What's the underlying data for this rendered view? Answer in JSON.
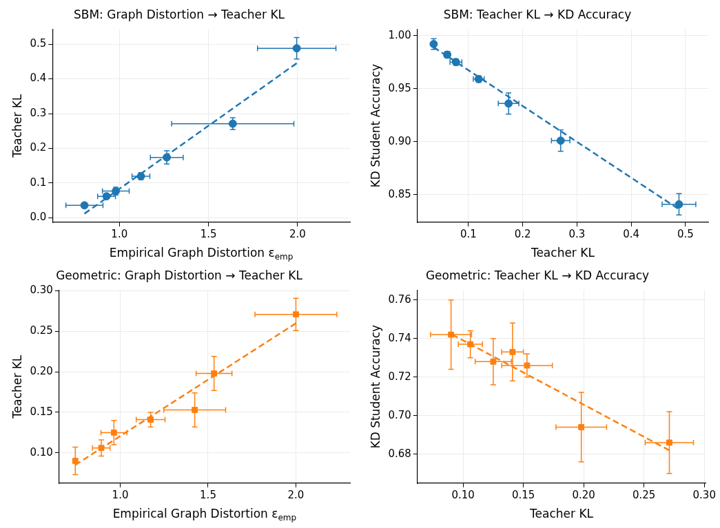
{
  "chart_data": [
    {
      "type": "scatter",
      "title": "SBM: Graph Distortion → Teacher KL",
      "xlabel": "Empirical Graph Distortion ε$_{emp}$",
      "ylabel": "Teacher KL",
      "marker": "circle",
      "grid": true,
      "legend": false,
      "xlim": [
        0.625,
        2.294
      ],
      "xticks": [
        {
          "value": 1,
          "label": "1.0"
        },
        1.5,
        {
          "value": 2,
          "label": "2.0"
        }
      ],
      "ylim": [
        -0.013,
        0.543
      ],
      "yticks": [
        {
          "value": 0,
          "label": "0.0"
        },
        0.1,
        0.2,
        0.3,
        0.4,
        0.5
      ],
      "series": [
        {
          "type": "scatter",
          "color": "#1f77b4",
          "x": [
            0.804,
            0.928,
            0.98,
            1.121,
            1.266,
            1.636,
            1.995
          ],
          "values": [
            0.036,
            0.062,
            0.077,
            0.12,
            0.174,
            0.271,
            0.488
          ],
          "errors": [
            null,
            null,
            0.011,
            0.01,
            0.019,
            0.017,
            0.031
          ],
          "xerrors": [
            0.104,
            0.05,
            0.075,
            0.05,
            0.092,
            0.343,
            0.22
          ]
        },
        {
          "type": "line",
          "color": "#1f77b4",
          "marker": "none",
          "line_style": "dashed",
          "x": [
            0.804,
            1.995
          ],
          "values": [
            0.012,
            0.445
          ]
        }
      ]
    },
    {
      "type": "scatter",
      "title": "SBM: Teacher KL → KD Accuracy",
      "xlabel": "Teacher KL",
      "ylabel": "KD Student Accuracy",
      "marker": "circle",
      "grid": true,
      "legend": false,
      "xlim": [
        0.006,
        0.542
      ],
      "xticks": [
        0.1,
        0.2,
        0.3,
        0.4,
        0.5
      ],
      "ylim": [
        0.824,
        1.006
      ],
      "yticks": [
        0.85,
        {
          "value": 0.9,
          "label": "0.90"
        },
        0.95,
        {
          "value": 1,
          "label": "1.00"
        }
      ],
      "series": [
        {
          "type": "scatter",
          "color": "#1f77b4",
          "x": [
            0.036,
            0.061,
            0.077,
            0.119,
            0.174,
            0.27,
            0.488
          ],
          "values": [
            0.992,
            0.982,
            0.975,
            0.959,
            0.936,
            0.901,
            0.841
          ],
          "errors": [
            0.005,
            0.003,
            0.003,
            0.003,
            0.01,
            0.01,
            0.01
          ],
          "xerrors": [
            0.002,
            0.005,
            0.011,
            0.01,
            0.019,
            0.017,
            0.031
          ]
        },
        {
          "type": "line",
          "color": "#1f77b4",
          "marker": "none",
          "line_style": "dashed",
          "x": [
            0.036,
            0.486
          ],
          "values": [
            0.989,
            0.837
          ]
        }
      ]
    },
    {
      "type": "scatter",
      "title": "Geometric: Graph Distortion → Teacher KL",
      "xlabel": "Empirical Graph Distortion ε$_{emp}$",
      "ylabel": "Teacher KL",
      "marker": "square",
      "grid": true,
      "legend": false,
      "xlim": [
        0.652,
        2.308
      ],
      "xticks": [
        {
          "value": 1,
          "label": "1.0"
        },
        1.5,
        {
          "value": 2,
          "label": "2.0"
        }
      ],
      "ylim": [
        0.0624,
        0.301
      ],
      "yticks": [
        {
          "value": 0.1,
          "label": "0.10"
        },
        0.15,
        {
          "value": 0.2,
          "label": "0.20"
        },
        0.25,
        {
          "value": 0.3,
          "label": "0.30"
        }
      ],
      "series": [
        {
          "type": "scatter",
          "color": "#ff7f0e",
          "x": [
            0.744,
            0.892,
            0.964,
            1.173,
            1.424,
            1.534,
            2.0
          ],
          "values": [
            0.09,
            0.106,
            0.125,
            0.141,
            0.153,
            0.198,
            0.271
          ],
          "errors": [
            0.017,
            0.01,
            0.015,
            0.009,
            0.021,
            0.021,
            0.02
          ],
          "xerrors": [
            0.005,
            0.05,
            0.074,
            0.082,
            0.176,
            0.102,
            0.233
          ]
        },
        {
          "type": "line",
          "color": "#ff7f0e",
          "marker": "none",
          "line_style": "dashed",
          "x": [
            0.744,
            2.0
          ],
          "values": [
            0.085,
            0.26
          ]
        }
      ]
    },
    {
      "type": "scatter",
      "title": "Geometric: Teacher KL → KD Accuracy",
      "xlabel": "Teacher KL",
      "ylabel": "KD Student Accuracy",
      "marker": "square",
      "grid": true,
      "legend": false,
      "xlim": [
        0.0621,
        0.3012
      ],
      "xticks": [
        {
          "value": 0.1,
          "label": "0.10"
        },
        0.15,
        {
          "value": 0.2,
          "label": "0.20"
        },
        0.25,
        {
          "value": 0.3,
          "label": "0.30"
        }
      ],
      "ylim": [
        0.6649,
        0.7651
      ],
      "yticks": [
        0.68,
        {
          "value": 0.7,
          "label": "0.70"
        },
        0.72,
        0.74,
        0.76
      ],
      "series": [
        {
          "type": "scatter",
          "color": "#ff7f0e",
          "x": [
            0.09,
            0.106,
            0.125,
            0.141,
            0.153,
            0.198,
            0.271
          ],
          "values": [
            0.742,
            0.737,
            0.728,
            0.733,
            0.726,
            0.694,
            0.686
          ],
          "errors": [
            0.018,
            0.007,
            0.012,
            0.015,
            0.006,
            0.018,
            0.016
          ],
          "xerrors": [
            0.017,
            0.01,
            0.015,
            0.009,
            0.021,
            0.021,
            0.02
          ]
        },
        {
          "type": "line",
          "color": "#ff7f0e",
          "marker": "none",
          "line_style": "dashed",
          "x": [
            0.091,
            0.271
          ],
          "values": [
            0.742,
            0.682
          ]
        }
      ]
    }
  ]
}
